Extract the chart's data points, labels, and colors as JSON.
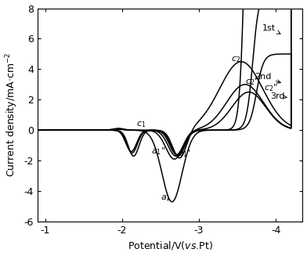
{
  "xlim": [
    -0.9,
    -4.35
  ],
  "ylim": [
    -6,
    8
  ],
  "xlabel": "Potential/V(νσ.Pt)",
  "ylabel": "Current density/mA·cm⁻²",
  "xticks": [
    -1,
    -2,
    -3,
    -4
  ],
  "yticks": [
    -6,
    -4,
    -2,
    0,
    2,
    4,
    6,
    8
  ],
  "line_color": "#000000",
  "background": "#ffffff",
  "lw": 1.1
}
